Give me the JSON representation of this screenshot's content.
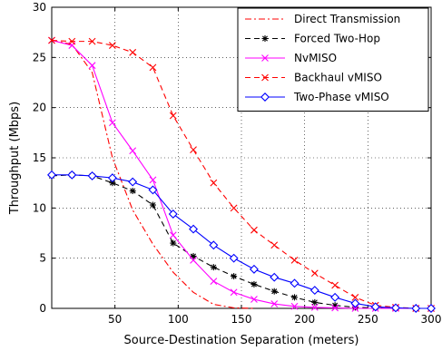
{
  "chart_data": {
    "type": "line",
    "xlabel": "Source-Destination Separation (meters)",
    "ylabel": "Throughput (Mbps)",
    "xlim": [
      0,
      300
    ],
    "ylim": [
      0,
      30
    ],
    "xticks": [
      50,
      100,
      150,
      200,
      250,
      300
    ],
    "yticks": [
      0,
      5,
      10,
      15,
      20,
      25,
      30
    ],
    "xtick_labels": [
      "50",
      "100",
      "150",
      "200",
      "250",
      "300"
    ],
    "ytick_labels": [
      "0",
      "5",
      "10",
      "15",
      "20",
      "25",
      "30"
    ],
    "grid": true,
    "legend_position": "top-right",
    "series": [
      {
        "name": "Direct Transmission",
        "color": "#ff0000",
        "line": "dashdot",
        "marker": "none",
        "x": [
          0,
          16,
          32,
          48,
          64,
          80,
          96,
          112,
          128,
          144,
          160
        ],
        "y": [
          26.7,
          26.3,
          23.5,
          15.0,
          9.8,
          6.4,
          3.6,
          1.6,
          0.4,
          0.05,
          0
        ]
      },
      {
        "name": "Forced Two-Hop",
        "color": "#000000",
        "line": "dashed",
        "marker": "asterisk",
        "x": [
          0,
          16,
          32,
          48,
          64,
          80,
          96,
          112,
          128,
          144,
          160,
          176,
          192,
          208,
          224,
          240,
          256,
          272,
          288,
          300
        ],
        "y": [
          13.2,
          13.3,
          13.2,
          12.5,
          11.7,
          10.3,
          6.5,
          5.2,
          4.1,
          3.2,
          2.4,
          1.7,
          1.1,
          0.6,
          0.3,
          0.1,
          0.05,
          0,
          0,
          0
        ]
      },
      {
        "name": "NvMISO",
        "color": "#ff00ff",
        "line": "solid",
        "marker": "x",
        "x": [
          0,
          16,
          32,
          48,
          64,
          80,
          96,
          112,
          128,
          144,
          160,
          176,
          192,
          208,
          224,
          240,
          256,
          272,
          288,
          300
        ],
        "y": [
          26.7,
          26.2,
          24.2,
          18.5,
          15.7,
          12.8,
          7.3,
          4.8,
          2.7,
          1.6,
          0.9,
          0.45,
          0.2,
          0.1,
          0.05,
          0,
          0,
          0,
          0,
          0
        ]
      },
      {
        "name": "Backhaul vMISO",
        "color": "#ff0000",
        "line": "dashed",
        "marker": "x",
        "x": [
          0,
          16,
          32,
          48,
          64,
          80,
          96,
          112,
          128,
          144,
          160,
          176,
          192,
          208,
          224,
          240,
          256,
          272,
          288,
          300
        ],
        "y": [
          26.7,
          26.6,
          26.6,
          26.2,
          25.5,
          24.0,
          19.2,
          15.8,
          12.5,
          10.0,
          7.8,
          6.3,
          4.8,
          3.5,
          2.3,
          1.1,
          0.3,
          0.1,
          0,
          0
        ]
      },
      {
        "name": "Two-Phase vMISO",
        "color": "#0000ff",
        "line": "solid",
        "marker": "diamond",
        "x": [
          0,
          16,
          32,
          48,
          64,
          80,
          96,
          112,
          128,
          144,
          160,
          176,
          192,
          208,
          224,
          240,
          256,
          272,
          288,
          300
        ],
        "y": [
          13.3,
          13.3,
          13.2,
          13.0,
          12.6,
          11.8,
          9.4,
          7.9,
          6.3,
          5.0,
          3.9,
          3.1,
          2.5,
          1.8,
          1.1,
          0.5,
          0.15,
          0.05,
          0,
          0
        ]
      }
    ]
  }
}
